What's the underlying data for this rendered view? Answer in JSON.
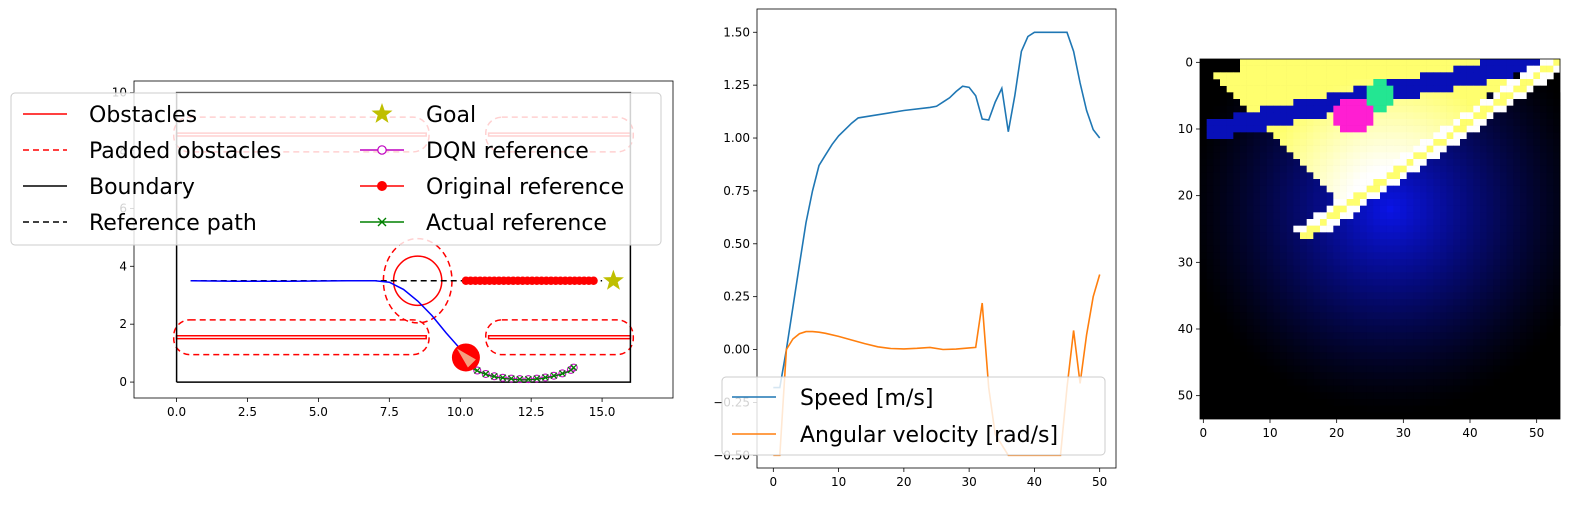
{
  "chart_data": [
    {
      "type": "line",
      "xlim": [
        -1.5,
        17.5
      ],
      "ylim": [
        -0.55,
        10.4
      ],
      "x_ticks": [
        "0.0",
        "2.5",
        "5.0",
        "7.5",
        "10.0",
        "12.5",
        "15.0"
      ],
      "y_ticks": [
        "0",
        "2",
        "4",
        "6",
        "8",
        "10"
      ],
      "legend": {
        "placement": "upper-left",
        "entries": [
          {
            "label": "Obstacles",
            "color": "#ff0000",
            "style": "solid"
          },
          {
            "label": "Padded obstacles",
            "color": "#ff0000",
            "style": "dashed"
          },
          {
            "label": "Boundary",
            "color": "#000000",
            "style": "solid"
          },
          {
            "label": "Reference path",
            "color": "#000000",
            "style": "dashed"
          },
          {
            "label": "Goal",
            "color": "#bfbf00",
            "style": "star"
          },
          {
            "label": "DQN reference",
            "color": "#bf00bf",
            "style": "open-circle"
          },
          {
            "label": "Original reference",
            "color": "#ff0000",
            "style": "filled-circle"
          },
          {
            "label": "Actual reference",
            "color": "#008000",
            "style": "x"
          }
        ]
      },
      "boundary": [
        [
          0,
          0
        ],
        [
          16,
          0
        ],
        [
          16,
          10
        ],
        [
          0,
          10
        ]
      ],
      "obstacles": [
        {
          "x": [
            0,
            8.8
          ],
          "y": [
            1.5,
            1.6
          ]
        },
        {
          "x": [
            11,
            16
          ],
          "y": [
            1.5,
            1.6
          ]
        },
        {
          "x": [
            0,
            8.8
          ],
          "y": [
            8.5,
            8.6
          ]
        },
        {
          "x": [
            11,
            16
          ],
          "y": [
            8.5,
            8.6
          ]
        }
      ],
      "circle_obstacle": {
        "center": [
          8.5,
          3.5
        ],
        "radius": 0.85,
        "padding_radius": 1.3
      },
      "reference_path": {
        "x": [
          0.5,
          15.0
        ],
        "y": [
          3.5,
          3.5
        ]
      },
      "goal": [
        15.4,
        3.5
      ],
      "original_reference": {
        "x_start": 10.2,
        "x_end": 14.7,
        "count": 28,
        "y": 3.5
      },
      "trajectory": {
        "x": [
          0.5,
          2.0,
          4.0,
          6.0,
          7.0,
          7.5,
          8.0,
          8.5,
          9.0,
          9.5,
          10.0,
          10.2
        ],
        "y": [
          3.5,
          3.48,
          3.48,
          3.5,
          3.5,
          3.45,
          3.2,
          2.8,
          2.3,
          1.7,
          1.15,
          0.85
        ]
      },
      "robot": {
        "x": 10.2,
        "y": 0.85
      },
      "dqn_reference": {
        "x": [
          10.3,
          10.6,
          10.9,
          11.2,
          11.5,
          11.8,
          12.1,
          12.4,
          12.7,
          13.0,
          13.3,
          13.6,
          13.9,
          14.0
        ],
        "y": [
          0.55,
          0.4,
          0.28,
          0.2,
          0.15,
          0.12,
          0.1,
          0.1,
          0.12,
          0.16,
          0.22,
          0.3,
          0.42,
          0.5
        ]
      }
    },
    {
      "type": "line",
      "xlim": [
        -2.5,
        52.5
      ],
      "ylim": [
        -0.56,
        1.61
      ],
      "x_ticks": [
        "0",
        "10",
        "20",
        "30",
        "40",
        "50"
      ],
      "y_ticks": [
        "−0.50",
        "−0.25",
        "0.00",
        "0.25",
        "0.50",
        "0.75",
        "1.00",
        "1.25",
        "1.50"
      ],
      "legend": {
        "placement": "lower-right"
      },
      "series": [
        {
          "name": "Speed [m/s]",
          "color": "#1f77b4",
          "x": [
            0,
            1,
            2,
            3,
            4,
            5,
            6,
            7,
            8,
            9,
            10,
            11,
            12,
            13,
            15,
            20,
            24,
            25,
            26,
            27,
            28,
            29,
            30,
            31,
            32,
            33,
            34,
            35,
            36,
            37,
            38,
            39,
            40,
            41,
            42,
            43,
            44,
            45,
            46,
            47,
            48,
            49,
            50
          ],
          "values": [
            -0.18,
            -0.18,
            0.0,
            0.2,
            0.4,
            0.6,
            0.75,
            0.87,
            0.92,
            0.97,
            1.01,
            1.04,
            1.07,
            1.095,
            1.105,
            1.13,
            1.145,
            1.15,
            1.17,
            1.19,
            1.22,
            1.245,
            1.24,
            1.2,
            1.09,
            1.085,
            1.17,
            1.235,
            1.03,
            1.2,
            1.41,
            1.48,
            1.5,
            1.5,
            1.5,
            1.5,
            1.5,
            1.5,
            1.41,
            1.26,
            1.13,
            1.04,
            1.0
          ]
        },
        {
          "name": "Angular velocity [rad/s]",
          "color": "#ff7f0e",
          "x": [
            0,
            1,
            2,
            3,
            4,
            5,
            6,
            7,
            8,
            10,
            12,
            14,
            16,
            18,
            20,
            22,
            24,
            26,
            28,
            30,
            31,
            32,
            33,
            34,
            36,
            38,
            40,
            42,
            44,
            45,
            46,
            47,
            48,
            49,
            50
          ],
          "values": [
            -0.5,
            -0.5,
            0.0,
            0.05,
            0.075,
            0.085,
            0.085,
            0.082,
            0.077,
            0.062,
            0.045,
            0.028,
            0.013,
            0.005,
            0.003,
            0.006,
            0.01,
            0.0,
            0.002,
            0.008,
            0.01,
            0.22,
            -0.18,
            -0.4,
            -0.5,
            -0.5,
            -0.5,
            -0.5,
            -0.5,
            -0.18,
            0.09,
            -0.16,
            0.07,
            0.25,
            0.355
          ]
        }
      ]
    },
    {
      "type": "heatmap",
      "xlim": [
        -0.5,
        53.5
      ],
      "ylim": [
        53.5,
        -0.5
      ],
      "x_ticks": [
        "0",
        "10",
        "20",
        "30",
        "40",
        "50"
      ],
      "y_ticks": [
        "0",
        "10",
        "20",
        "30",
        "40",
        "50"
      ],
      "grid_size": 54,
      "colors": {
        "background": "#000000",
        "field": "#0a14e6",
        "bright_zone": "#ffff6e",
        "goal_marker": "#ff1ed2",
        "robot_marker": "#23e692",
        "edge": "#ffffff"
      },
      "features": {
        "bright_triangle": [
          [
            0,
            0
          ],
          [
            49,
            0
          ],
          [
            22,
            22
          ]
        ],
        "diagonal_band_1": {
          "from": [
            2,
            10
          ],
          "to": [
            49,
            0
          ],
          "width": 3
        },
        "diagonal_band_2": {
          "from": [
            15,
            26
          ],
          "to": [
            53,
            0
          ],
          "width": 2
        },
        "magenta_blob": {
          "center": [
            22.5,
            8
          ],
          "radius": 3
        },
        "green_blob": {
          "center": [
            26.5,
            5
          ],
          "radius": 2.5
        },
        "blue_glow": {
          "center": [
            28,
            22
          ],
          "radius": 14
        }
      }
    }
  ]
}
